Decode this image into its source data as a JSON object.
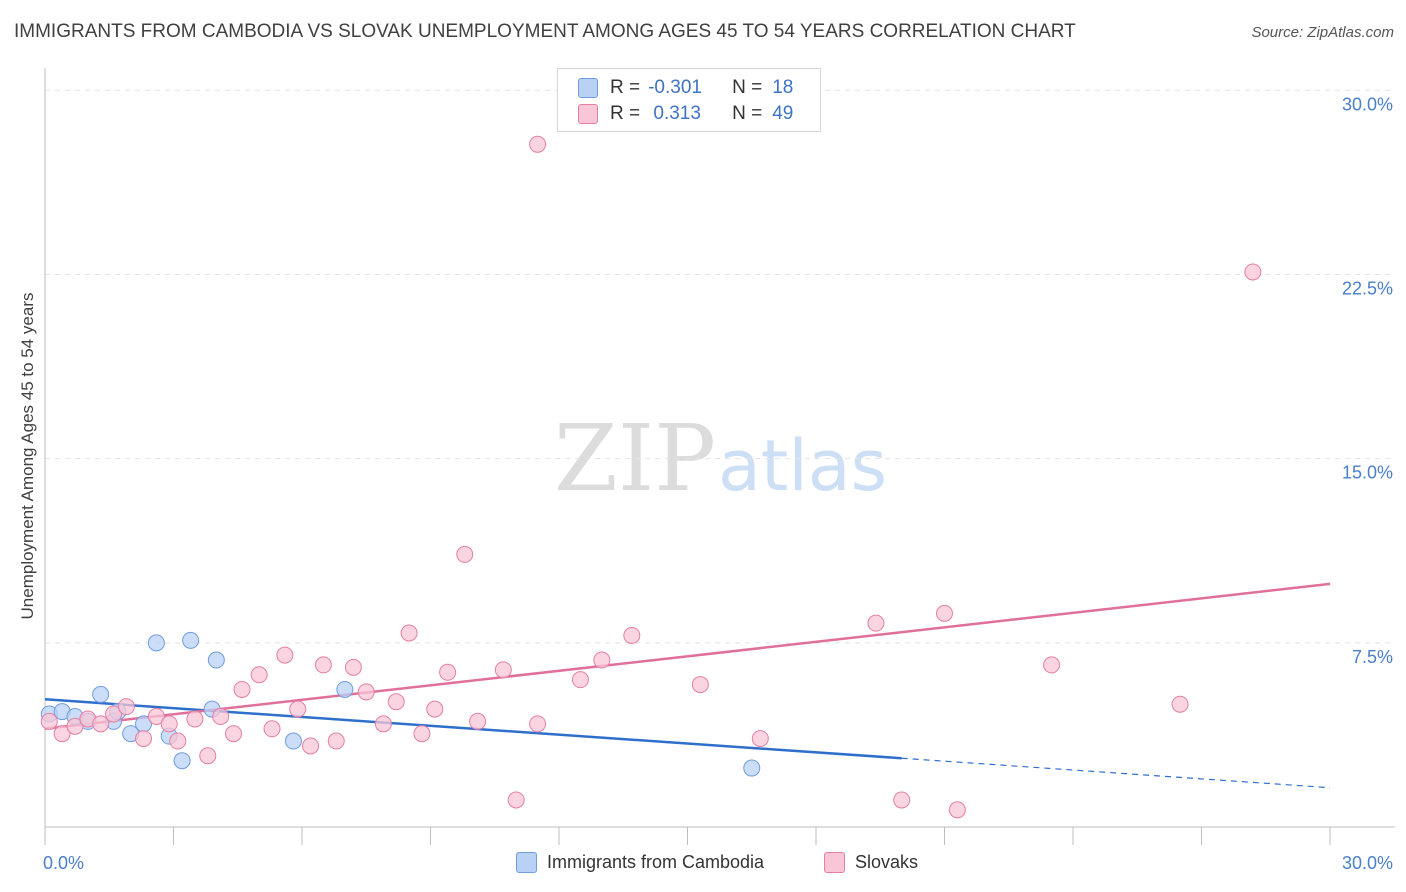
{
  "title": "IMMIGRANTS FROM CAMBODIA VS SLOVAK UNEMPLOYMENT AMONG AGES 45 TO 54 YEARS CORRELATION CHART",
  "source": "Source: ZipAtlas.com",
  "watermark": {
    "zip": "ZIP",
    "atlas": "atlas"
  },
  "legend": {
    "rows": [
      {
        "r_label": "R =",
        "r_value": "-0.301",
        "n_label": "N =",
        "n_value": "18"
      },
      {
        "r_label": "R =",
        "r_value": " 0.313",
        "n_label": "N =",
        "n_value": "49"
      }
    ]
  },
  "chart_data": {
    "type": "scatter",
    "title": "IMMIGRANTS FROM CAMBODIA VS SLOVAK UNEMPLOYMENT AMONG AGES 45 TO 54 YEARS CORRELATION CHART",
    "xlabel": "",
    "ylabel": "Unemployment Among Ages 45 to 54 years",
    "xlim": [
      0,
      30
    ],
    "ylim": [
      0,
      30.5
    ],
    "x_tick_labels": [
      "0.0%",
      "30.0%"
    ],
    "y_ticks": [
      {
        "value": 7.5,
        "label": "7.5%"
      },
      {
        "value": 15,
        "label": "15.0%"
      },
      {
        "value": 22.5,
        "label": "22.5%"
      },
      {
        "value": 30,
        "label": "30.0%"
      }
    ],
    "grid": true,
    "legend_position": "bottom",
    "series": [
      {
        "name": "Immigrants from Cambodia",
        "color": "#6f9de0",
        "fill": "#b9d1f5",
        "r": -0.301,
        "n": 18,
        "points": [
          [
            0.1,
            4.6
          ],
          [
            0.4,
            4.7
          ],
          [
            0.7,
            4.5
          ],
          [
            1.0,
            4.3
          ],
          [
            1.3,
            5.4
          ],
          [
            1.6,
            4.3
          ],
          [
            1.7,
            4.7
          ],
          [
            2.0,
            3.8
          ],
          [
            2.3,
            4.2
          ],
          [
            2.6,
            7.5
          ],
          [
            2.9,
            3.7
          ],
          [
            3.2,
            2.7
          ],
          [
            3.4,
            7.6
          ],
          [
            3.9,
            4.8
          ],
          [
            4.0,
            6.8
          ],
          [
            5.8,
            3.5
          ],
          [
            7.0,
            5.6
          ],
          [
            16.5,
            2.4
          ]
        ],
        "trend": {
          "x": [
            0,
            20
          ],
          "y": [
            5.2,
            2.8
          ]
        },
        "trend_dashed": {
          "x": [
            20,
            30
          ],
          "y": [
            2.8,
            1.6
          ]
        }
      },
      {
        "name": "Slovaks",
        "color": "#e57fa4",
        "fill": "#f8c6d6",
        "r": 0.313,
        "n": 49,
        "points": [
          [
            0.1,
            4.3
          ],
          [
            0.4,
            3.8
          ],
          [
            0.7,
            4.1
          ],
          [
            1.0,
            4.4
          ],
          [
            1.3,
            4.2
          ],
          [
            1.6,
            4.6
          ],
          [
            1.9,
            4.9
          ],
          [
            2.3,
            3.6
          ],
          [
            2.6,
            4.5
          ],
          [
            2.9,
            4.2
          ],
          [
            3.1,
            3.5
          ],
          [
            3.5,
            4.4
          ],
          [
            3.8,
            2.9
          ],
          [
            4.1,
            4.5
          ],
          [
            4.4,
            3.8
          ],
          [
            4.6,
            5.6
          ],
          [
            5.0,
            6.2
          ],
          [
            5.3,
            4.0
          ],
          [
            5.6,
            7.0
          ],
          [
            5.9,
            4.8
          ],
          [
            6.2,
            3.3
          ],
          [
            6.5,
            6.6
          ],
          [
            6.8,
            3.5
          ],
          [
            7.2,
            6.5
          ],
          [
            7.5,
            5.5
          ],
          [
            7.9,
            4.2
          ],
          [
            8.2,
            5.1
          ],
          [
            8.5,
            7.9
          ],
          [
            8.8,
            3.8
          ],
          [
            9.1,
            4.8
          ],
          [
            9.4,
            6.3
          ],
          [
            9.8,
            11.1
          ],
          [
            10.1,
            4.3
          ],
          [
            10.7,
            6.4
          ],
          [
            11.0,
            1.1
          ],
          [
            11.5,
            4.2
          ],
          [
            11.5,
            27.8
          ],
          [
            12.5,
            6.0
          ],
          [
            13.0,
            6.8
          ],
          [
            13.7,
            7.8
          ],
          [
            15.3,
            5.8
          ],
          [
            16.7,
            3.6
          ],
          [
            19.4,
            8.3
          ],
          [
            20.0,
            1.1
          ],
          [
            21.0,
            8.7
          ],
          [
            21.3,
            0.7
          ],
          [
            23.5,
            6.6
          ],
          [
            26.5,
            5.0
          ],
          [
            28.2,
            22.6
          ]
        ],
        "trend": {
          "x": [
            0,
            30
          ],
          "y": [
            4.0,
            9.9
          ]
        }
      }
    ]
  }
}
